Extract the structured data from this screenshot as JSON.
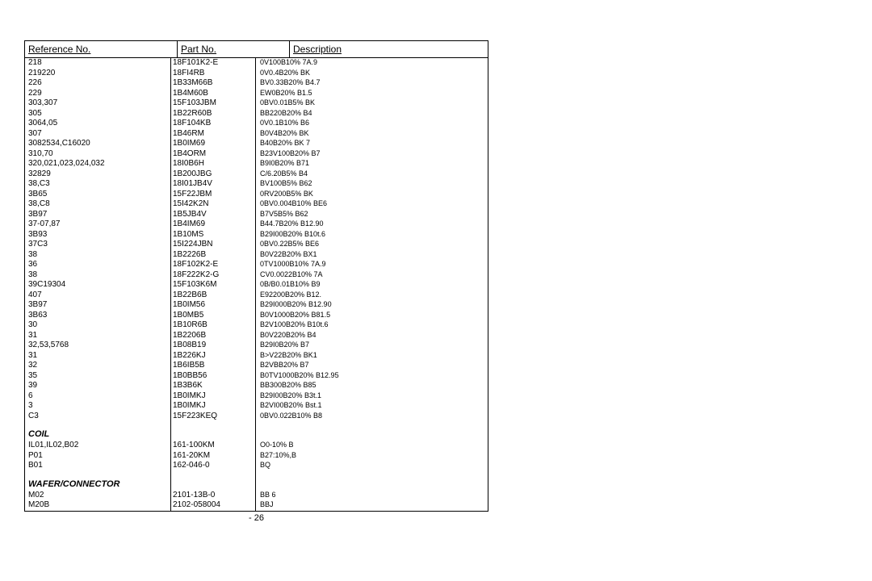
{
  "header": {
    "ref": "Reference No.",
    "part": "Part No.",
    "desc": "Description"
  },
  "sections": {
    "coil": "COIL",
    "wafer": "WAFER/CONNECTOR"
  },
  "pagenum": "- 26",
  "rows_main": [
    {
      "ref": "218",
      "part": "18F101K2-E",
      "val": "",
      "desc": "0V100B10% 7A.9"
    },
    {
      "ref": "219220",
      "part": "18FI4RB",
      "val": "",
      "desc": "0V0.4B20% BK"
    },
    {
      "ref": "226",
      "part": "1B33M66B",
      "val": "",
      "desc": "BV0.33B20% B4.7"
    },
    {
      "ref": "229",
      "part": "1B4M60B",
      "val": "",
      "desc": "EW0B20% B1.5"
    },
    {
      "ref": "303,307",
      "part": "15F103JBM",
      "val": "",
      "desc": "0BV0.01B5% BK"
    },
    {
      "ref": "305",
      "part": "1B22R60B",
      "val": "",
      "desc": "BB220B20% B4"
    },
    {
      "ref": "3064,05",
      "part": "18F104KB",
      "val": "",
      "desc": "0V0.1B10% B6"
    },
    {
      "ref": "307",
      "part": "1B46RM",
      "val": "",
      "desc": "B0V4B20% BK"
    },
    {
      "ref": "3082534,C16020",
      "part": "1B0IM69",
      "val": "",
      "desc": "B40B20% BK 7"
    },
    {
      "ref": "310,70",
      "part": "1B4ORM",
      "val": "",
      "desc": "B23V100B20% B7"
    },
    {
      "ref": "320,021,023,024,032",
      "part": "18I0B6H",
      "val": "",
      "desc": "B9I0B20% B71"
    },
    {
      "ref": "32829",
      "part": "1B200JBG",
      "val": "",
      "desc": "C/6.20B5% B4"
    },
    {
      "ref": "38,C3",
      "part": "18I01JB4V",
      "val": "",
      "desc": "BV100B5% B62"
    },
    {
      "ref": "3B65",
      "part": "15F22JBM",
      "val": "",
      "desc": "0RV200B5% BK"
    },
    {
      "ref": "38,C8",
      "part": "15I42K2N",
      "val": "",
      "desc": "0BV0.004B10% BE6"
    },
    {
      "ref": "3B97",
      "part": "1B5JB4V",
      "val": "",
      "desc": "B7V5B5% B62"
    },
    {
      "ref": "37-07,87",
      "part": "1B4IM69",
      "val": "",
      "desc": "B44.7B20% B12.90"
    },
    {
      "ref": "3B93",
      "part": "1B10MS",
      "val": "",
      "desc": "B29I00B20% B10t.6"
    },
    {
      "ref": "37C3",
      "part": "15I224JBN",
      "val": "",
      "desc": "0BV0.22B5% BE6"
    },
    {
      "ref": "38",
      "part": "1B2226B",
      "val": "",
      "desc": "B0V22B20% BX1"
    },
    {
      "ref": "36",
      "part": "18F102K2-E",
      "val": "",
      "desc": "0TV1000B10% 7A.9"
    },
    {
      "ref": "38",
      "part": "18F222K2-G",
      "val": "",
      "desc": "CV0.0022B10% 7A"
    },
    {
      "ref": "39C19304",
      "part": "15F103K6M",
      "val": "",
      "desc": "0B/B0.01B10% B9"
    },
    {
      "ref": "407",
      "part": "1B22B6B",
      "val": "",
      "desc": "E92200B20% B12."
    },
    {
      "ref": "3B97",
      "part": "1B0IM56",
      "val": "",
      "desc": "B29I000B20% B12.90"
    },
    {
      "ref": "3B63",
      "part": "1B0MB5",
      "val": "",
      "desc": "B0V1000B20% B81.5"
    },
    {
      "ref": "30",
      "part": "1B10R6B",
      "val": "",
      "desc": "B2V100B20% B10t.6"
    },
    {
      "ref": "31",
      "part": "1B2206B",
      "val": "",
      "desc": "B0V220B20% B4"
    },
    {
      "ref": "32,53,5768",
      "part": "1B08B19",
      "val": "",
      "desc": "B29I0B20% B7"
    },
    {
      "ref": "31",
      "part": "1B226KJ",
      "val": "",
      "desc": "B>V22B20% BK1"
    },
    {
      "ref": "32",
      "part": "1B6IB5B",
      "val": "",
      "desc": "B2VBB20% B7"
    },
    {
      "ref": "35",
      "part": "1B0BB56",
      "val": "",
      "desc": "B0TV1000B20% B12.95"
    },
    {
      "ref": "39",
      "part": "1B3B6K",
      "val": "",
      "desc": "BB300B20% B85"
    },
    {
      "ref": "6",
      "part": "1B0IMKJ",
      "val": "",
      "desc": "B29I00B20% B3t.1"
    },
    {
      "ref": "3",
      "part": "1B0IMKJ",
      "val": "",
      "desc": "B2VI00B20% Bst.1"
    },
    {
      "ref": "C3",
      "part": "15F223KEQ",
      "val": "",
      "desc": "0BV0.022B10% B8"
    }
  ],
  "rows_coil": [
    {
      "ref": "IL01,IL02,B02",
      "part": "161-100KM",
      "val": "",
      "desc": "O0-10% B"
    },
    {
      "ref": "P01",
      "part": "161-20KM",
      "val": "",
      "desc": "B27:10%,B"
    },
    {
      "ref": "B01",
      "part": "162-046-0",
      "val": "",
      "desc": "BQ"
    }
  ],
  "rows_wafer": [
    {
      "ref": "M02",
      "part": "2101-13B-0",
      "val": "",
      "desc": "BB 6"
    },
    {
      "ref": "M20B",
      "part": "2102-058004",
      "val": "",
      "desc": "BBJ"
    }
  ]
}
